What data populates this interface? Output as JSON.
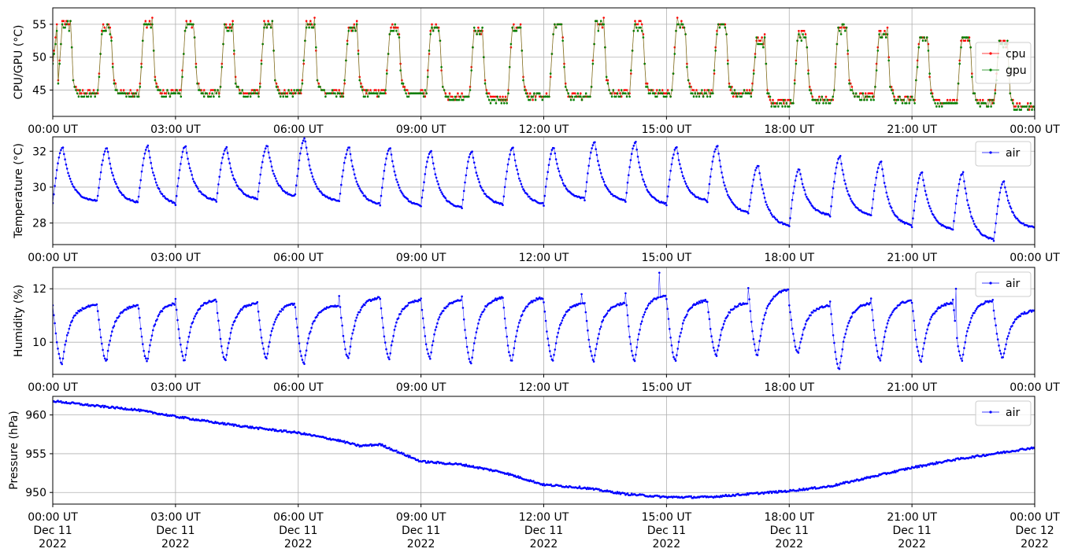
{
  "chart_data": [
    {
      "type": "line",
      "ylabel": "CPU/GPU (°C)",
      "xlim": [
        "2022-12-11T00:00",
        "2022-12-12T00:00"
      ],
      "ylim": [
        41,
        57.5
      ],
      "yticks": [
        45,
        50,
        55
      ],
      "xtick_labels": [
        "00:00 UT",
        "03:00 UT",
        "06:00 UT",
        "09:00 UT",
        "12:00 UT",
        "15:00 UT",
        "18:00 UT",
        "21:00 UT",
        "00:00 UT"
      ],
      "grid": true,
      "legend": "right",
      "cycle_pattern": {
        "period_minutes": 60,
        "rise_start_minutes": [
          7,
          66,
          127,
          188,
          245,
          303,
          365,
          427,
          488,
          548,
          611,
          667,
          728,
          789,
          846,
          908,
          968,
          1025,
          1086,
          1145,
          1205,
          1264,
          1326,
          1381
        ],
        "low_values": [
          44.5,
          44.5,
          44.5,
          44.5,
          44.5,
          44.5,
          44.5,
          44.5,
          44.5,
          43.8,
          43.5,
          44,
          44,
          44.5,
          44.5,
          44.5,
          44.5,
          43,
          43.5,
          44,
          43.5,
          43,
          43,
          42.5
        ],
        "high_values": [
          55.5,
          55,
          55.5,
          55.5,
          55,
          55.5,
          55.5,
          55,
          55,
          55,
          54.5,
          55,
          55.5,
          55.5,
          55.5,
          55.5,
          55.5,
          53,
          54,
          55,
          54,
          53.5,
          53.5,
          52.5
        ]
      },
      "series": [
        {
          "name": "cpu",
          "color": "#ff0000"
        },
        {
          "name": "gpu",
          "color": "#008000"
        }
      ]
    },
    {
      "type": "line",
      "ylabel": "Temperature (°C)",
      "xlim": [
        "2022-12-11T00:00",
        "2022-12-12T00:00"
      ],
      "ylim": [
        26.8,
        32.8
      ],
      "yticks": [
        28,
        30,
        32
      ],
      "xtick_labels": [
        "00:00 UT",
        "03:00 UT",
        "06:00 UT",
        "09:00 UT",
        "12:00 UT",
        "15:00 UT",
        "18:00 UT",
        "21:00 UT",
        "00:00 UT"
      ],
      "grid": true,
      "legend": "top-right",
      "cycle_pattern": {
        "rise_start_minutes": [
          0,
          65,
          125,
          180,
          240,
          300,
          355,
          420,
          480,
          540,
          600,
          660,
          720,
          780,
          840,
          900,
          960,
          1020,
          1080,
          1140,
          1200,
          1260,
          1320,
          1380
        ],
        "low_values": [
          29.1,
          29.2,
          29.1,
          29.0,
          29.2,
          29.3,
          29.4,
          29.2,
          29.0,
          28.9,
          28.8,
          29.0,
          29.0,
          29.3,
          29.2,
          29.0,
          29.2,
          28.5,
          27.8,
          28.4,
          28.4,
          27.8,
          27.6,
          27.0
        ],
        "high_values": [
          32.2,
          32.2,
          32.3,
          32.3,
          32.2,
          32.3,
          32.7,
          32.2,
          32.2,
          32.0,
          32.0,
          32.2,
          32.2,
          32.5,
          32.5,
          32.2,
          32.3,
          31.2,
          31.0,
          31.7,
          31.4,
          30.8,
          30.8,
          30.3
        ],
        "end_value": 27.7
      },
      "series": [
        {
          "name": "air",
          "color": "#0000ff"
        }
      ]
    },
    {
      "type": "line",
      "ylabel": "Humidity (%)",
      "xlim": [
        "2022-12-11T00:00",
        "2022-12-12T00:00"
      ],
      "ylim": [
        8.8,
        12.8
      ],
      "yticks": [
        10,
        12
      ],
      "xtick_labels": [
        "00:00 UT",
        "03:00 UT",
        "06:00 UT",
        "09:00 UT",
        "12:00 UT",
        "15:00 UT",
        "18:00 UT",
        "21:00 UT",
        "00:00 UT"
      ],
      "grid": true,
      "legend": "top-right",
      "cycle_pattern": {
        "dip_start_minutes": [
          0,
          65,
          125,
          180,
          240,
          300,
          355,
          420,
          480,
          540,
          600,
          660,
          720,
          780,
          840,
          900,
          960,
          1020,
          1080,
          1140,
          1200,
          1260,
          1320,
          1380
        ],
        "low_values": [
          9.2,
          9.3,
          9.3,
          9.3,
          9.3,
          9.4,
          9.2,
          9.4,
          9.4,
          9.4,
          9.2,
          9.3,
          9.3,
          9.3,
          9.3,
          9.3,
          9.5,
          9.5,
          9.6,
          9.0,
          9.3,
          9.3,
          9.3,
          9.4
        ],
        "high_values": [
          11.4,
          11.4,
          11.5,
          11.6,
          11.5,
          11.5,
          11.4,
          11.7,
          11.6,
          11.6,
          11.7,
          11.7,
          11.5,
          11.5,
          11.8,
          11.6,
          11.5,
          12.0,
          11.4,
          11.5,
          11.6,
          11.5,
          11.6,
          11.2
        ],
        "spikes": [
          [
            775,
            11.8
          ],
          [
            890,
            12.6
          ],
          [
            1325,
            12.0
          ]
        ]
      },
      "series": [
        {
          "name": "air",
          "color": "#0000ff"
        }
      ]
    },
    {
      "type": "line",
      "ylabel": "Pressure (hPa)",
      "xlim": [
        "2022-12-11T00:00",
        "2022-12-12T00:00"
      ],
      "ylim": [
        948.5,
        962.4
      ],
      "yticks": [
        950,
        955,
        960
      ],
      "xtick_labels": [
        "00:00 UT\nDec 11\n2022",
        "03:00 UT\nDec 11\n2022",
        "06:00 UT\nDec 11\n2022",
        "09:00 UT\nDec 11\n2022",
        "12:00 UT\nDec 11\n2022",
        "15:00 UT\nDec 11\n2022",
        "18:00 UT\nDec 11\n2022",
        "21:00 UT\nDec 11\n2022",
        "00:00 UT\nDec 12\n2022"
      ],
      "grid": true,
      "legend": "top-right",
      "keypoints": [
        [
          "2022-12-11T00:00",
          961.8
        ],
        [
          "2022-12-11T01:00",
          961.2
        ],
        [
          "2022-12-11T02:00",
          960.7
        ],
        [
          "2022-12-11T03:00",
          959.8
        ],
        [
          "2022-12-11T04:00",
          959.0
        ],
        [
          "2022-12-11T05:00",
          958.3
        ],
        [
          "2022-12-11T06:00",
          957.7
        ],
        [
          "2022-12-11T07:00",
          956.7
        ],
        [
          "2022-12-11T07:30",
          956.0
        ],
        [
          "2022-12-11T08:00",
          956.2
        ],
        [
          "2022-12-11T09:00",
          954.0
        ],
        [
          "2022-12-11T10:00",
          953.6
        ],
        [
          "2022-12-11T11:00",
          952.6
        ],
        [
          "2022-12-11T12:00",
          951.0
        ],
        [
          "2022-12-11T13:00",
          950.6
        ],
        [
          "2022-12-11T14:00",
          949.8
        ],
        [
          "2022-12-11T15:00",
          949.4
        ],
        [
          "2022-12-11T16:00",
          949.4
        ],
        [
          "2022-12-11T17:00",
          949.8
        ],
        [
          "2022-12-11T18:00",
          950.2
        ],
        [
          "2022-12-11T19:00",
          950.8
        ],
        [
          "2022-12-11T20:00",
          952.0
        ],
        [
          "2022-12-11T21:00",
          953.2
        ],
        [
          "2022-12-11T22:00",
          954.2
        ],
        [
          "2022-12-11T23:00",
          955.0
        ],
        [
          "2022-12-12T00:00",
          955.8
        ]
      ],
      "series": [
        {
          "name": "air",
          "color": "#0000ff"
        }
      ]
    }
  ]
}
